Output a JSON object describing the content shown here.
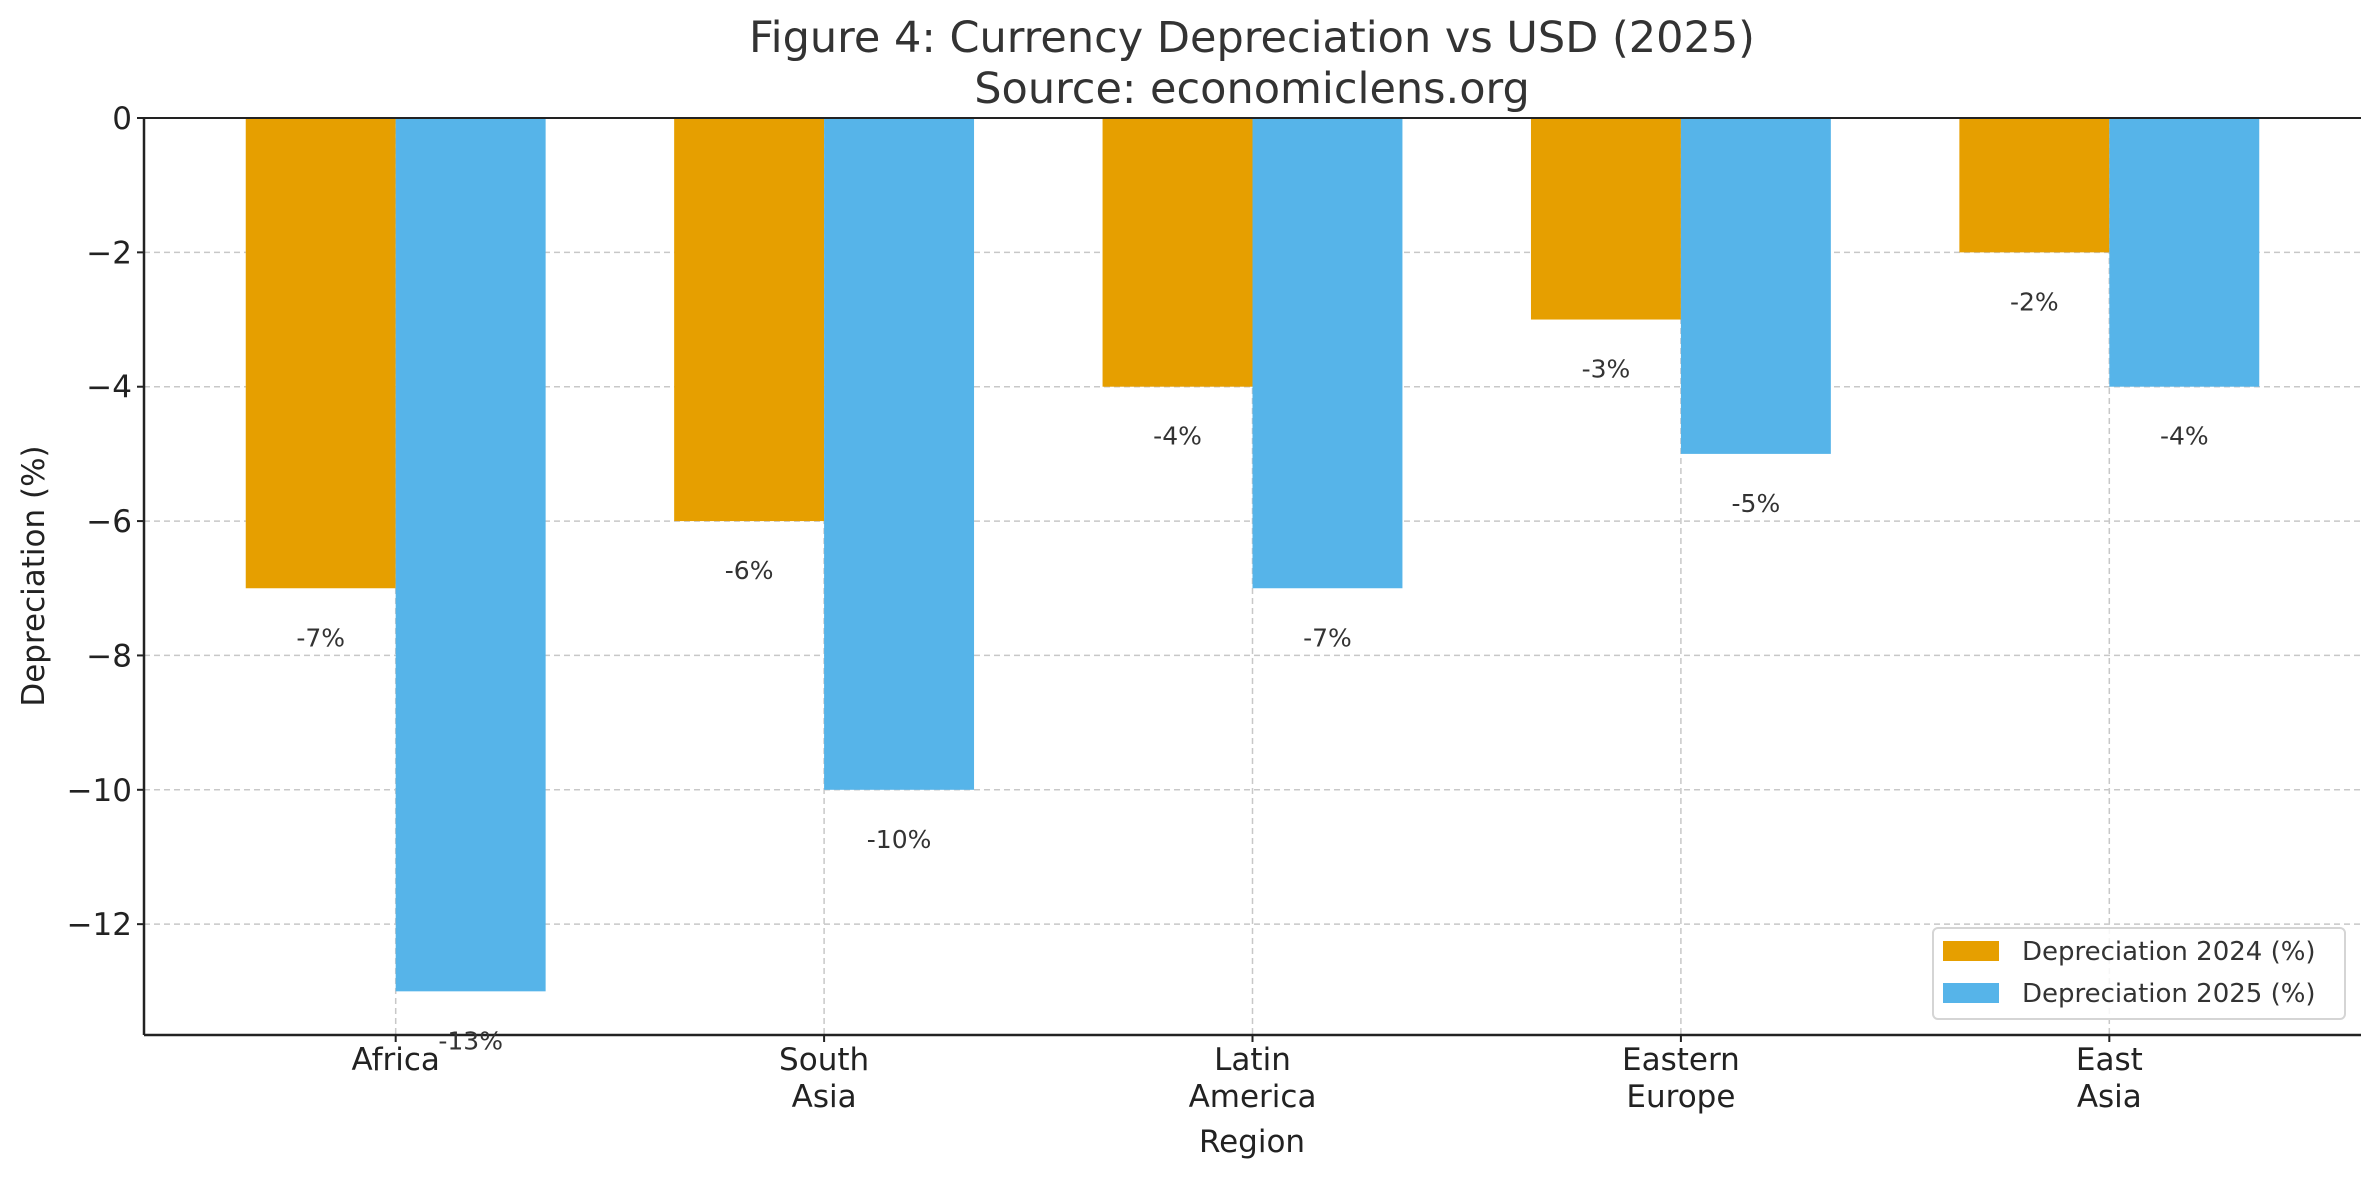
{
  "chart_data": {
    "type": "bar",
    "title": "Figure 4: Currency Depreciation vs USD (2025)",
    "subtitle": "Source: economiclens.org",
    "xlabel": "Region",
    "ylabel": "Depreciation (%)",
    "categories": [
      [
        "Africa"
      ],
      [
        "South",
        "Asia"
      ],
      [
        "Latin",
        "America"
      ],
      [
        "Eastern",
        "Europe"
      ],
      [
        "East",
        "Asia"
      ]
    ],
    "series": [
      {
        "name": "Depreciation 2024 (%)",
        "color": "#E69F00",
        "values": [
          -7,
          -6,
          -4,
          -3,
          -2
        ],
        "labels": [
          "-7%",
          "-6%",
          "-4%",
          "-3%",
          "-2%"
        ]
      },
      {
        "name": "Depreciation 2025 (%)",
        "color": "#56B4E9",
        "values": [
          -13,
          -10,
          -7,
          -5,
          -4
        ],
        "labels": [
          "-13%",
          "-10%",
          "-7%",
          "-5%",
          "-4%"
        ]
      }
    ],
    "ylim": [
      -13.65,
      0
    ],
    "yticks": [
      0,
      -2,
      -4,
      -6,
      -8,
      -10,
      -12
    ],
    "ytick_labels": [
      "0",
      "−2",
      "−4",
      "−6",
      "−8",
      "−10",
      "−12"
    ],
    "grid": true,
    "legend_position": "lower-right"
  }
}
